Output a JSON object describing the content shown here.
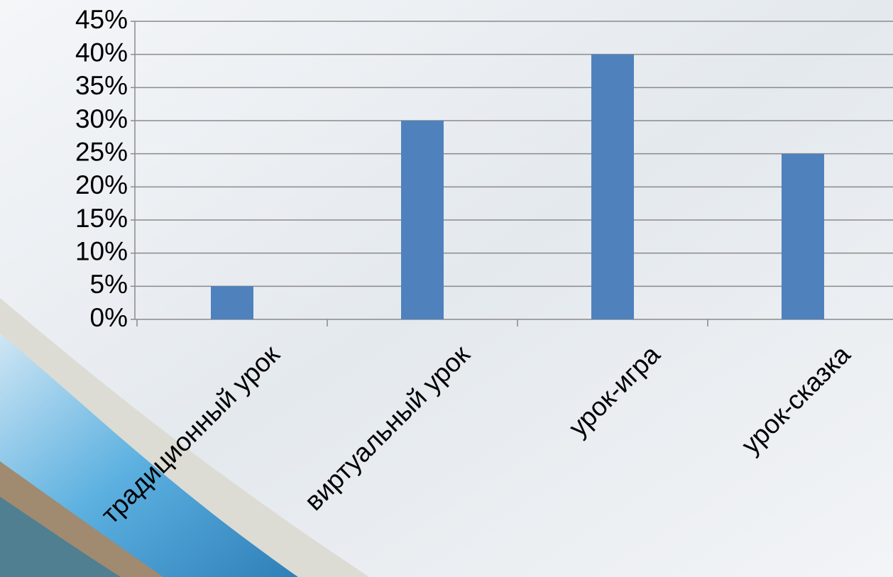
{
  "chart_data": {
    "type": "bar",
    "categories": [
      "традиционный урок",
      "виртуальный урок",
      "урок-игра",
      "урок-сказка"
    ],
    "values": [
      5,
      30,
      40,
      25
    ],
    "color": "#4f81bd",
    "ylim": [
      0,
      45
    ],
    "yticks": [
      {
        "value": 0,
        "label": "0%"
      },
      {
        "value": 5,
        "label": "5%"
      },
      {
        "value": 10,
        "label": "10%"
      },
      {
        "value": 15,
        "label": "15%"
      },
      {
        "value": 20,
        "label": "20%"
      },
      {
        "value": 25,
        "label": "25%"
      },
      {
        "value": 30,
        "label": "30%"
      },
      {
        "value": 35,
        "label": "35%"
      },
      {
        "value": 40,
        "label": "40%"
      },
      {
        "value": 45,
        "label": "45%"
      }
    ],
    "grid": true
  }
}
